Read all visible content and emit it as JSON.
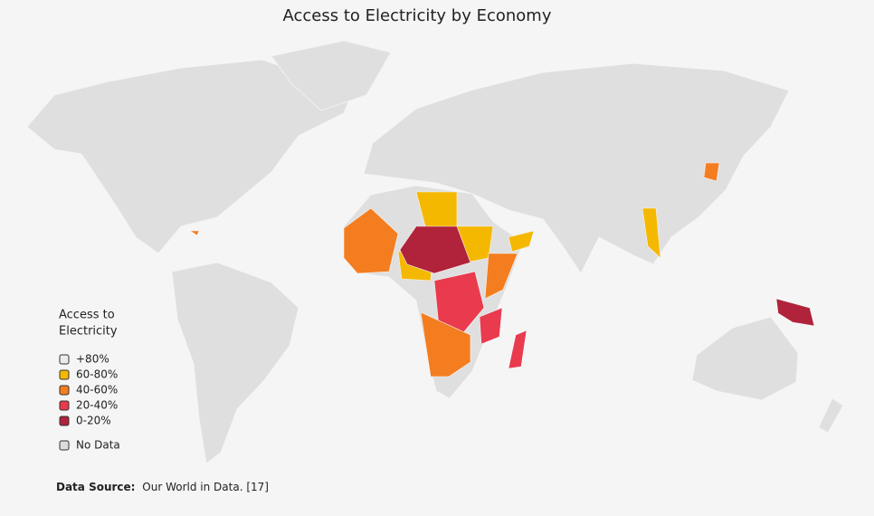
{
  "title": "Access to Electricity by Economy",
  "legend": {
    "title_lines": [
      "Access to",
      "Electricity"
    ],
    "items": [
      {
        "label": "+80%",
        "color": "#ebebeb"
      },
      {
        "label": "60-80%",
        "color": "#f5b800"
      },
      {
        "label": "40-60%",
        "color": "#f47d20"
      },
      {
        "label": "20-40%",
        "color": "#e93a4e"
      },
      {
        "label": "0-20%",
        "color": "#b0233b"
      }
    ],
    "no_data": {
      "label": "No Data",
      "color": "#dcdcdc"
    }
  },
  "source": {
    "label": "Data Source:",
    "text": "Our World in Data. [17]"
  }
}
